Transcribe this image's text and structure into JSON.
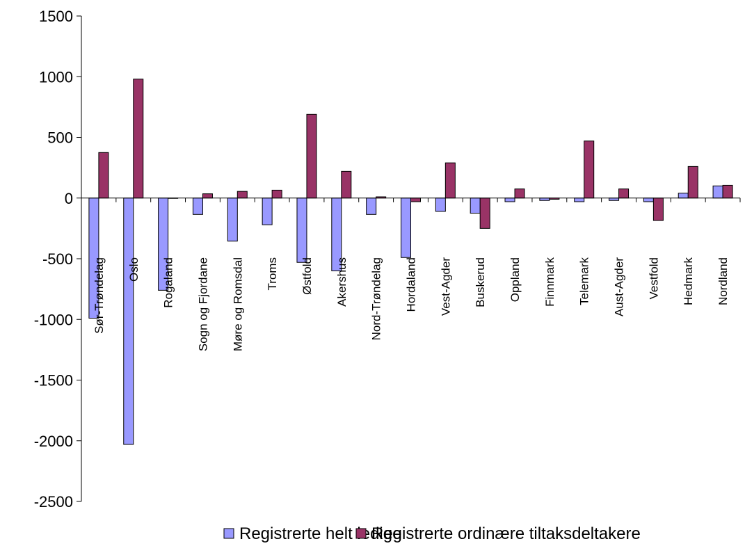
{
  "chart_data": {
    "type": "bar",
    "title": "",
    "xlabel": "",
    "ylabel": "",
    "ylim": [
      -2500,
      1500
    ],
    "yticks": [
      1500,
      1000,
      500,
      0,
      -500,
      -1000,
      -1500,
      -2000,
      -2500
    ],
    "ytick_labels": [
      "1500",
      "1000",
      "500",
      "0",
      "-500",
      "-1000",
      "-1500",
      "-2000",
      "-2500"
    ],
    "grid": false,
    "legend_position": "bottom",
    "categories": [
      "Sør-Trøndelag",
      "Oslo",
      "Rogaland",
      "Sogn og Fjordane",
      "Møre og Romsdal",
      "Troms",
      "Østfold",
      "Akershus",
      "Nord-Trøndelag",
      "Hordaland",
      "Vest-Agder",
      "Buskerud",
      "Oppland",
      "Finnmark",
      "Telemark",
      "Aust-Agder",
      "Vestfold",
      "Hedmark",
      "Nordland"
    ],
    "series": [
      {
        "name": "Registrerte helt ledige",
        "color": "#9999ff",
        "values": [
          -990,
          -2030,
          -760,
          -135,
          -355,
          -220,
          -530,
          -600,
          -135,
          -490,
          -110,
          -125,
          -30,
          -20,
          -30,
          -20,
          -30,
          40,
          100
        ]
      },
      {
        "name": "Registrerte ordinære tiltaksdeltakere",
        "color": "#993366",
        "values": [
          375,
          980,
          0,
          35,
          55,
          65,
          690,
          220,
          10,
          -30,
          290,
          -250,
          75,
          -10,
          470,
          75,
          -185,
          260,
          105
        ]
      }
    ]
  }
}
